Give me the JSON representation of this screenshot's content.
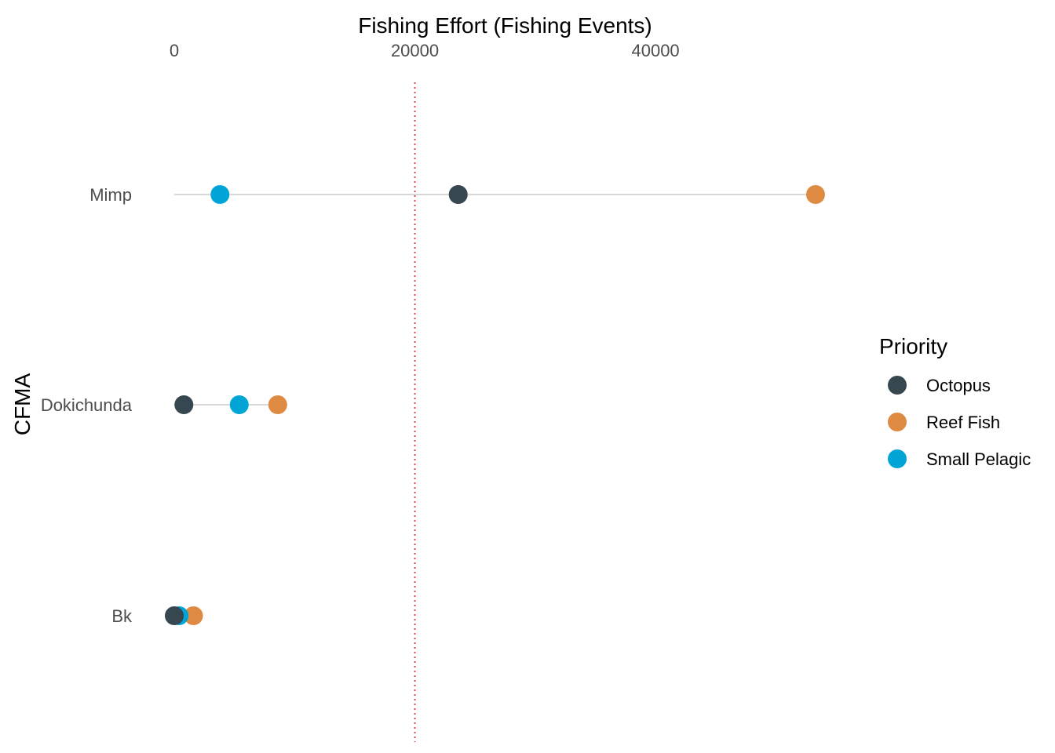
{
  "chart_data": {
    "type": "scatter",
    "subtype": "dumbbell",
    "orientation": "horizontal",
    "x_axis_position": "top",
    "xlabel": "Fishing Effort (Fishing Events)",
    "ylabel": "CFMA",
    "xlim": [
      0,
      55000
    ],
    "xticks": [
      0,
      20000,
      40000
    ],
    "xtick_labels": [
      "0",
      "20000",
      "40000"
    ],
    "categories": [
      "Mimp",
      "Dokichunda",
      "Bk"
    ],
    "reference_line": {
      "x": 20000,
      "color": "#e41a1c",
      "style": "dotted"
    },
    "segment_color": "#cccccc",
    "grid": false,
    "legend": {
      "title": "Priority",
      "placement": "right"
    },
    "series": [
      {
        "name": "Octopus",
        "color": "#36474f",
        "values": [
          23600,
          800,
          0
        ]
      },
      {
        "name": "Reef Fish",
        "color": "#de8a43",
        "values": [
          53300,
          8600,
          1600
        ]
      },
      {
        "name": "Small Pelagic",
        "color": "#00a5d6",
        "values": [
          3800,
          5400,
          400
        ]
      }
    ]
  }
}
